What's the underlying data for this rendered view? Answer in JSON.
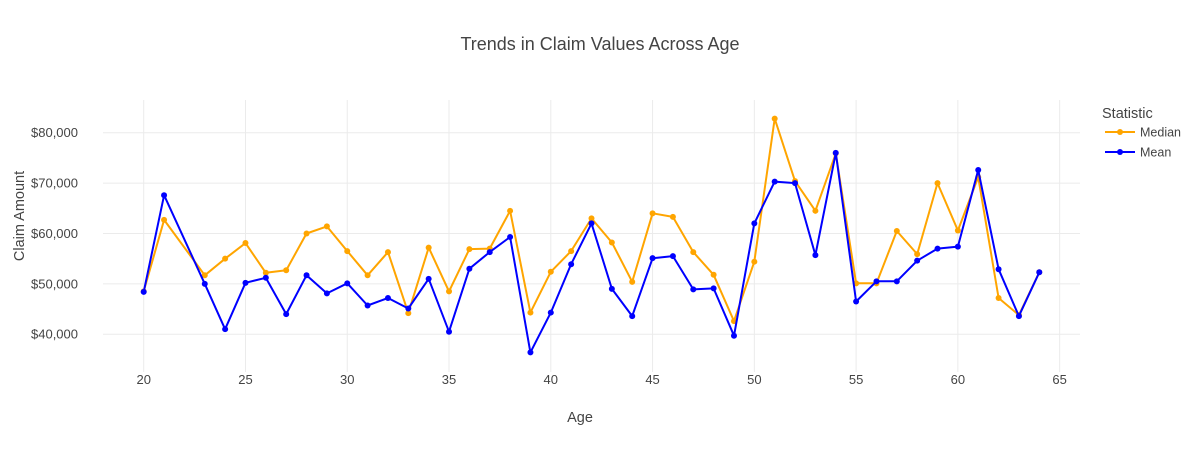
{
  "chart_data": {
    "type": "line",
    "title": "Trends in Claim Values Across Age",
    "xlabel": "Age",
    "ylabel": "Claim Amount",
    "xlim": [
      18,
      66
    ],
    "ylim": [
      32500,
      86500
    ],
    "x_ticks": [
      20,
      25,
      30,
      35,
      40,
      45,
      50,
      55,
      60,
      65
    ],
    "y_ticks": [
      40000,
      50000,
      60000,
      70000,
      80000
    ],
    "y_tick_labels": [
      "$40,000",
      "$50,000",
      "$60,000",
      "$70,000",
      "$80,000"
    ],
    "grid": true,
    "legend": {
      "title": "Statistic",
      "placement": "top-right"
    },
    "x": [
      20,
      21,
      23,
      24,
      25,
      26,
      27,
      28,
      29,
      30,
      31,
      32,
      33,
      34,
      35,
      36,
      37,
      38,
      39,
      40,
      41,
      42,
      43,
      44,
      45,
      46,
      47,
      48,
      49,
      50,
      51,
      52,
      53,
      54,
      55,
      56,
      57,
      58,
      59,
      60,
      61,
      62,
      63,
      64
    ],
    "series": [
      {
        "name": "Median",
        "color": "#FFA500",
        "values": [
          48500,
          62700,
          51700,
          55000,
          58100,
          52200,
          52700,
          60000,
          61400,
          56500,
          51700,
          56300,
          44200,
          57200,
          48500,
          56900,
          57000,
          64500,
          44300,
          52400,
          56500,
          63000,
          58200,
          50400,
          64000,
          63300,
          56300,
          51800,
          42600,
          54400,
          82800,
          70400,
          64500,
          75900,
          50100,
          50100,
          60500,
          55900,
          70000,
          60600,
          71200,
          47200,
          43800,
          52300
        ]
      },
      {
        "name": "Mean",
        "color": "#0000FF",
        "values": [
          48400,
          67600,
          50000,
          41000,
          50200,
          51200,
          44000,
          51700,
          48100,
          50100,
          45700,
          47200,
          45100,
          51000,
          40500,
          53000,
          56300,
          59300,
          36400,
          44300,
          53900,
          62000,
          49000,
          43600,
          55100,
          55500,
          48900,
          49100,
          39700,
          62000,
          70300,
          70000,
          55700,
          76000,
          46500,
          50500,
          50500,
          54600,
          57000,
          57400,
          72600,
          52900,
          43600,
          52300
        ]
      }
    ]
  }
}
